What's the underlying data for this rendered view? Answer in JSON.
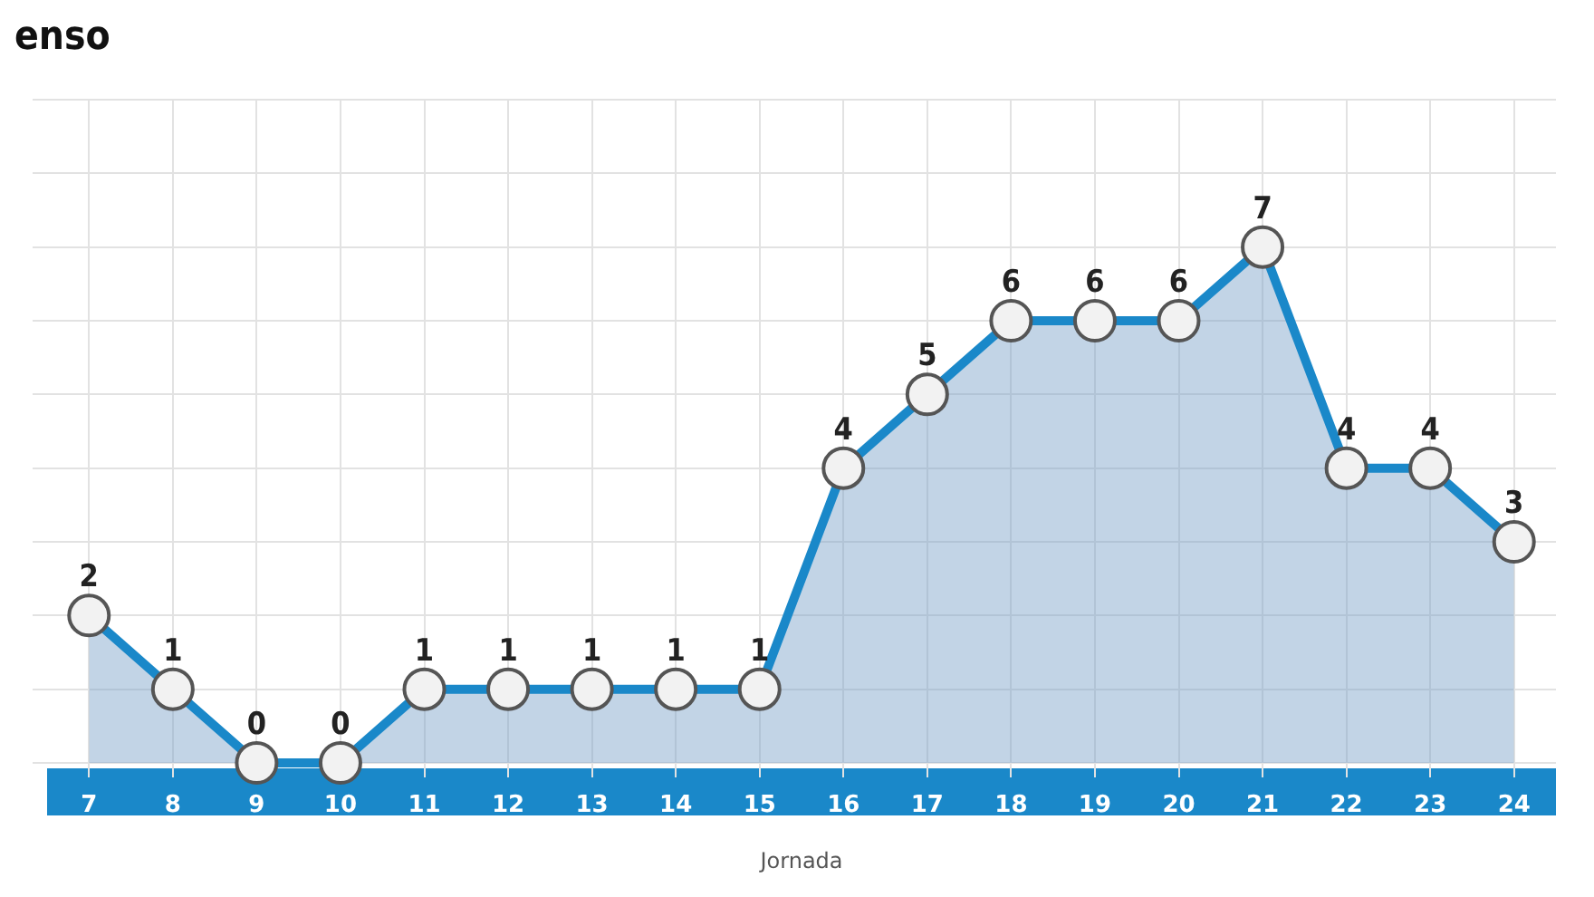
{
  "chart_data": {
    "type": "area",
    "title": "enso",
    "xlabel": "Jornada",
    "categories": [
      "7",
      "8",
      "9",
      "10",
      "11",
      "12",
      "13",
      "14",
      "15",
      "16",
      "17",
      "18",
      "19",
      "20",
      "21",
      "22",
      "23",
      "24"
    ],
    "series": [
      {
        "color": "#1a88c9",
        "values": [
          2,
          1,
          0,
          0,
          1,
          1,
          1,
          1,
          1,
          4,
          5,
          6,
          6,
          6,
          7,
          4,
          4,
          3
        ]
      }
    ],
    "data_labels": true,
    "grid": true,
    "tick_labels": "x",
    "marker": "circle",
    "legend": false
  }
}
